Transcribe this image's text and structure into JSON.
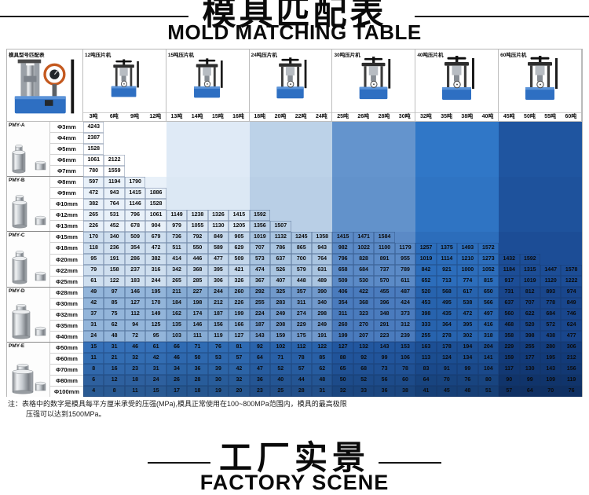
{
  "header": {
    "title_cn": "模具匹配表",
    "title_en": "MOLD MATCHING TABLE"
  },
  "footer": {
    "title_cn": "工厂实景",
    "title_en": "FACTORY SCENE"
  },
  "note": {
    "line1": "注：表格中的数字是模具每平方厘米承受的压强(MPa),模具正常使用在100~800MPa范围内，模具的最高极限",
    "line2": "压强可以达到1500MPa。"
  },
  "table": {
    "corner_label": "模具型号匹配表",
    "unit": "MPa",
    "machines": [
      {
        "label": "12吨压片机",
        "tons": [
          "3吨",
          "6吨",
          "9吨",
          "12吨"
        ]
      },
      {
        "label": "15吨压片机",
        "tons": [
          "13吨",
          "14吨",
          "15吨",
          "16吨"
        ]
      },
      {
        "label": "24吨压片机",
        "tons": [
          "18吨",
          "20吨",
          "22吨",
          "24吨"
        ]
      },
      {
        "label": "30吨压片机",
        "tons": [
          "25吨",
          "26吨",
          "28吨",
          "30吨"
        ]
      },
      {
        "label": "40吨压片机",
        "tons": [
          "32吨",
          "35吨",
          "38吨",
          "40吨"
        ]
      },
      {
        "label": "60吨压片机",
        "tons": [
          "45吨",
          "50吨",
          "55吨",
          "60吨"
        ]
      }
    ],
    "cell_colors": [
      [
        "#ffffff",
        "#dfeaf6",
        "#bcd2e8",
        "#6494cd",
        "#3077c7",
        "#1f55a0"
      ],
      [
        "#e9f1f9",
        "#dce8f4",
        "#b9cfe6",
        "#6292cb",
        "#2f74c3",
        "#1e529c"
      ],
      [
        "#cfdfef",
        "#c4d7eb",
        "#a9c4e0",
        "#5b8ac6",
        "#2c6dbb",
        "#1c4d96"
      ],
      [
        "#93b5da",
        "#86abd3",
        "#7199cb",
        "#4a7bbd",
        "#2763ae",
        "#19468c"
      ],
      [
        "#3570b8",
        "#2f6bb3",
        "#2a63ab",
        "#22579f",
        "#1c4f94",
        "#133c7c"
      ]
    ],
    "sections": [
      {
        "model": "PMY-A",
        "rows": [
          {
            "diameter": "Φ3mm",
            "values": [
              4243
            ]
          },
          {
            "diameter": "Φ4mm",
            "values": [
              2387
            ]
          },
          {
            "diameter": "Φ5mm",
            "values": [
              1528
            ]
          },
          {
            "diameter": "Φ6mm",
            "values": [
              1061,
              2122
            ]
          },
          {
            "diameter": "Φ7mm",
            "values": [
              780,
              1559
            ]
          }
        ]
      },
      {
        "model": "PMY-B",
        "rows": [
          {
            "diameter": "Φ8mm",
            "values": [
              597,
              1194,
              1790
            ]
          },
          {
            "diameter": "Φ9mm",
            "values": [
              472,
              943,
              1415,
              1886
            ]
          },
          {
            "diameter": "Φ10mm",
            "values": [
              382,
              764,
              1146,
              1528
            ]
          },
          {
            "diameter": "Φ12mm",
            "values": [
              265,
              531,
              796,
              1061,
              1149,
              1238,
              1326,
              1415,
              1592
            ]
          },
          {
            "diameter": "Φ13mm",
            "values": [
              226,
              452,
              678,
              904,
              979,
              1055,
              1130,
              1205,
              1356,
              1507
            ]
          }
        ]
      },
      {
        "model": "PMY-C",
        "rows": [
          {
            "diameter": "Φ15mm",
            "values": [
              170,
              340,
              509,
              679,
              736,
              792,
              849,
              905,
              1019,
              1132,
              1245,
              1358,
              1415,
              1471,
              1584
            ]
          },
          {
            "diameter": "Φ18mm",
            "values": [
              118,
              236,
              354,
              472,
              511,
              550,
              589,
              629,
              707,
              786,
              865,
              943,
              982,
              1022,
              1100,
              1179,
              1257,
              1375,
              1493,
              1572
            ]
          },
          {
            "diameter": "Φ20mm",
            "values": [
              95,
              191,
              286,
              382,
              414,
              446,
              477,
              509,
              573,
              637,
              700,
              764,
              796,
              828,
              891,
              955,
              1019,
              1114,
              1210,
              1273,
              1432,
              1592
            ]
          },
          {
            "diameter": "Φ22mm",
            "values": [
              79,
              158,
              237,
              316,
              342,
              368,
              395,
              421,
              474,
              526,
              579,
              631,
              658,
              684,
              737,
              789,
              842,
              921,
              1000,
              1052,
              1184,
              1315,
              1447,
              1578
            ]
          },
          {
            "diameter": "Φ25mm",
            "values": [
              61,
              122,
              183,
              244,
              265,
              285,
              306,
              326,
              367,
              407,
              448,
              489,
              509,
              530,
              570,
              611,
              652,
              713,
              774,
              815,
              917,
              1019,
              1120,
              1222
            ]
          }
        ]
      },
      {
        "model": "PMY-D",
        "rows": [
          {
            "diameter": "Φ28mm",
            "values": [
              49,
              97,
              146,
              195,
              211,
              227,
              244,
              260,
              292,
              325,
              357,
              390,
              406,
              422,
              455,
              487,
              520,
              568,
              617,
              650,
              731,
              812,
              893,
              974
            ]
          },
          {
            "diameter": "Φ30mm",
            "values": [
              42,
              85,
              127,
              170,
              184,
              198,
              212,
              226,
              255,
              283,
              311,
              340,
              354,
              368,
              396,
              424,
              453,
              495,
              538,
              566,
              637,
              707,
              778,
              849
            ]
          },
          {
            "diameter": "Φ32mm",
            "values": [
              37,
              75,
              112,
              149,
              162,
              174,
              187,
              199,
              224,
              249,
              274,
              298,
              311,
              323,
              348,
              373,
              398,
              435,
              472,
              497,
              560,
              622,
              684,
              746
            ]
          },
          {
            "diameter": "Φ35mm",
            "values": [
              31,
              62,
              94,
              125,
              135,
              146,
              156,
              166,
              187,
              208,
              229,
              249,
              260,
              270,
              291,
              312,
              333,
              364,
              395,
              416,
              468,
              520,
              572,
              624
            ]
          },
          {
            "diameter": "Φ40mm",
            "values": [
              24,
              48,
              72,
              95,
              103,
              111,
              119,
              127,
              143,
              159,
              175,
              191,
              199,
              207,
              223,
              239,
              255,
              278,
              302,
              318,
              358,
              398,
              438,
              477
            ]
          }
        ]
      },
      {
        "model": "PMY-E",
        "rows": [
          {
            "diameter": "Φ50mm",
            "values": [
              15,
              31,
              46,
              61,
              66,
              71,
              76,
              81,
              92,
              102,
              112,
              122,
              127,
              132,
              143,
              153,
              163,
              178,
              194,
              204,
              229,
              255,
              280,
              306
            ]
          },
          {
            "diameter": "Φ60mm",
            "values": [
              11,
              21,
              32,
              42,
              46,
              50,
              53,
              57,
              64,
              71,
              78,
              85,
              88,
              92,
              99,
              106,
              113,
              124,
              134,
              141,
              159,
              177,
              195,
              212
            ]
          },
          {
            "diameter": "Φ70mm",
            "values": [
              8,
              16,
              23,
              31,
              34,
              36,
              39,
              42,
              47,
              52,
              57,
              62,
              65,
              68,
              73,
              78,
              83,
              91,
              99,
              104,
              117,
              130,
              143,
              156
            ]
          },
          {
            "diameter": "Φ80mm",
            "values": [
              6,
              12,
              18,
              24,
              26,
              28,
              30,
              32,
              36,
              40,
              44,
              48,
              50,
              52,
              56,
              60,
              64,
              70,
              76,
              80,
              90,
              99,
              109,
              119
            ]
          },
          {
            "diameter": "Φ100mm",
            "values": [
              4,
              8,
              11,
              15,
              17,
              18,
              19,
              20,
              23,
              25,
              28,
              31,
              32,
              33,
              36,
              38,
              41,
              45,
              48,
              51,
              57,
              64,
              70,
              76
            ]
          }
        ]
      }
    ]
  }
}
